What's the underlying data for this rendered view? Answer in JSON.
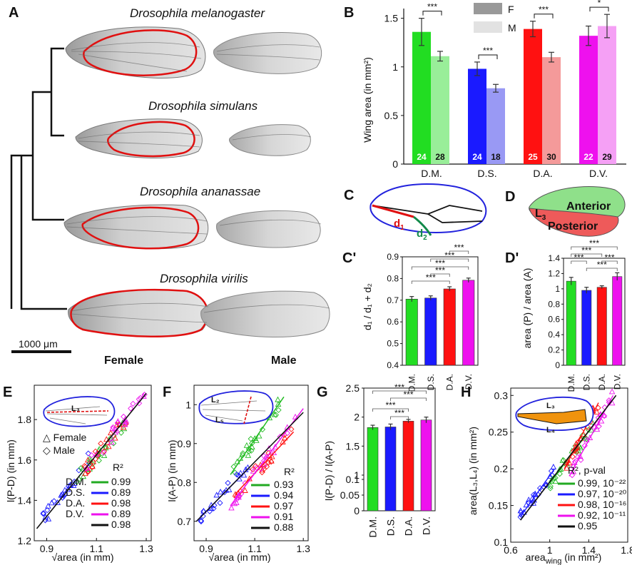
{
  "panels": {
    "A": "A",
    "B": "B",
    "C": "C",
    "Cp": "C'",
    "D": "D",
    "Dp": "D'",
    "E": "E",
    "F": "F",
    "G": "G",
    "H": "H"
  },
  "panelA": {
    "species": [
      "Drosophila melanogaster",
      "Drosophila simulans",
      "Drosophila ananassae",
      "Drosophila virilis"
    ],
    "scalebar": "1000 μm",
    "female": "Female",
    "male": "Male"
  },
  "panelB": {
    "ylabel": "Wing area (in mm²)",
    "legend_f": "F",
    "legend_m": "M",
    "yticks": [
      "0",
      "0.5",
      "1",
      "1.5"
    ],
    "categories": [
      "D.M.",
      "D.S.",
      "D.A.",
      "D.V."
    ],
    "sig": [
      "***",
      "***",
      "***",
      "*"
    ],
    "chart_data": {
      "type": "bar",
      "title": "",
      "xlabel": "",
      "ylabel": "Wing area (in mm²)",
      "ylim": [
        0,
        1.6
      ],
      "categories": [
        "D.M.",
        "D.S.",
        "D.A.",
        "D.V."
      ],
      "series": [
        {
          "name": "F",
          "values": [
            1.36,
            0.98,
            1.39,
            1.32
          ],
          "err": [
            0.14,
            0.07,
            0.08,
            0.1
          ],
          "n": [
            "24",
            "24",
            "25",
            "22"
          ]
        },
        {
          "name": "M",
          "values": [
            1.11,
            0.78,
            1.1,
            1.42
          ],
          "err": [
            0.05,
            0.04,
            0.05,
            0.12
          ],
          "n": [
            "28",
            "18",
            "30",
            "29"
          ]
        }
      ],
      "colors": [
        "#22dd22",
        "#1a1aff",
        "#ff1111",
        "#ee11ee"
      ],
      "colors_light": [
        "#99ee99",
        "#9999f4",
        "#f49a9a",
        "#f5a0f5"
      ]
    }
  },
  "panelC": {
    "d1": "d",
    "d1sub": "1",
    "d2": "d",
    "d2sub": "2",
    "ylabel": "d₁ / d₁ + d₂",
    "yticks": [
      "0.4",
      "0.5",
      "0.6",
      "0.7",
      "0.8",
      "0.9"
    ],
    "sig": "***",
    "chart_data": {
      "type": "bar",
      "ylabel": "d1 / d1 + d2",
      "ylim": [
        0.4,
        0.9
      ],
      "categories": [
        "D.M.",
        "D.S.",
        "D.A.",
        "D.V."
      ],
      "values": [
        0.705,
        0.71,
        0.752,
        0.792
      ],
      "err": [
        0.012,
        0.01,
        0.01,
        0.01
      ]
    }
  },
  "panelD": {
    "anterior": "Anterior",
    "posterior": "Posterior",
    "l3": "L",
    "l3sub": "3",
    "ylabel": "area (P) / area (A)",
    "yticks": [
      "0",
      "0.2",
      "0.4",
      "0.6",
      "0.8",
      "1",
      "1.2",
      "1.4"
    ],
    "sig": "***",
    "chart_data": {
      "type": "bar",
      "ylabel": "area (P) / area (A)",
      "ylim": [
        0,
        1.4
      ],
      "categories": [
        "D.M.",
        "D.S.",
        "D.A.",
        "D.V."
      ],
      "values": [
        1.1,
        0.98,
        1.02,
        1.16
      ],
      "err": [
        0.05,
        0.04,
        0.02,
        0.05
      ]
    }
  },
  "panelE": {
    "ylabel": "l(P-D) (in mm)",
    "xlabel": "√area (in mm)",
    "yticks": [
      "1.2",
      "1.4",
      "1.6",
      "1.8"
    ],
    "xticks": [
      "0.9",
      "1.1",
      "1.3"
    ],
    "legend_female": "△ Female",
    "legend_male": "◇ Male",
    "r2": "R²",
    "inset_l3": "L₃",
    "rows": [
      {
        "name": "D.M.",
        "val": "0.99",
        "color": "#22aa22"
      },
      {
        "name": "D.S.",
        "val": "0.89",
        "color": "#1a1aff"
      },
      {
        "name": "D.A.",
        "val": "0.98",
        "color": "#ff1111"
      },
      {
        "name": "D.V.",
        "val": "0.89",
        "color": "#ee11ee"
      },
      {
        "name": "",
        "val": "0.98",
        "color": "#111111"
      }
    ],
    "chart_data": {
      "type": "scatter",
      "xlabel": "√area (in mm)",
      "ylabel": "l(P-D) (in mm)",
      "xlim": [
        0.85,
        1.32
      ],
      "ylim": [
        1.2,
        1.97
      ],
      "fit": {
        "x": [
          0.86,
          1.3
        ],
        "y": [
          1.26,
          1.93
        ]
      },
      "clusters": [
        {
          "name": "D.S.",
          "x_range": [
            0.87,
            1.08
          ],
          "y_range": [
            1.28,
            1.62
          ]
        },
        {
          "name": "D.M.",
          "x_range": [
            1.02,
            1.22
          ],
          "y_range": [
            1.5,
            1.78
          ]
        },
        {
          "name": "D.A.",
          "x_range": [
            1.05,
            1.25
          ],
          "y_range": [
            1.55,
            1.85
          ]
        },
        {
          "name": "D.V.",
          "x_range": [
            1.05,
            1.3
          ],
          "y_range": [
            1.55,
            1.93
          ]
        }
      ]
    }
  },
  "panelF": {
    "ylabel": "l(A-P) (in mm)",
    "xlabel": "√area (in mm)",
    "yticks": [
      "0.7",
      "0.8",
      "0.9",
      "1"
    ],
    "xticks": [
      "0.9",
      "1.1",
      "1.3"
    ],
    "r2": "R²",
    "inset_l2": "L₂",
    "inset_l5": "L₅",
    "rows": [
      {
        "val": "0.93",
        "color": "#22aa22"
      },
      {
        "val": "0.94",
        "color": "#1a1aff"
      },
      {
        "val": "0.97",
        "color": "#ff1111"
      },
      {
        "val": "0.91",
        "color": "#ee11ee"
      },
      {
        "val": "0.88",
        "color": "#111111"
      }
    ],
    "chart_data": {
      "type": "scatter",
      "xlabel": "√area (in mm)",
      "ylabel": "l(A-P) (in mm)",
      "xlim": [
        0.85,
        1.32
      ],
      "ylim": [
        0.65,
        1.05
      ],
      "fits": [
        {
          "name": "D.M.",
          "x": [
            1.0,
            1.22
          ],
          "y": [
            0.82,
            1.02
          ]
        },
        {
          "name": "D.S.",
          "x": [
            0.86,
            1.08
          ],
          "y": [
            0.7,
            0.84
          ]
        },
        {
          "name": "D.A.",
          "x": [
            1.02,
            1.26
          ],
          "y": [
            0.77,
            0.93
          ]
        },
        {
          "name": "D.V.",
          "x": [
            1.0,
            1.3
          ],
          "y": [
            0.74,
            0.99
          ]
        },
        {
          "name": "all",
          "x": [
            0.86,
            1.3
          ],
          "y": [
            0.7,
            0.98
          ]
        }
      ]
    }
  },
  "panelG": {
    "ylabel": "l(P-D) / l(A-P)",
    "yticks": [
      "0",
      "0.05",
      "0.1",
      "1",
      "1.5",
      "2",
      "2.5"
    ],
    "sig": "***",
    "chart_data": {
      "type": "bar",
      "ylabel": "l(P-D) / l(A-P)",
      "broken_axis": true,
      "categories": [
        "D.M.",
        "D.S.",
        "D.A.",
        "D.V."
      ],
      "values": [
        1.82,
        1.83,
        1.93,
        1.95
      ],
      "err": [
        0.04,
        0.05,
        0.03,
        0.05
      ]
    }
  },
  "panelH": {
    "ylabel": "area(L₃,L₄) (in mm²)",
    "xlabel_main": "area",
    "xlabel_sub": "wing",
    "xlabel_unit": " (in mm²)",
    "yticks": [
      "0.1",
      "0.15",
      "0.2",
      "0.25",
      "0.3"
    ],
    "xticks": [
      "0.6",
      "1",
      "1.4",
      "1.8"
    ],
    "legend_title": "R², p-val",
    "inset_l3": "L₃",
    "inset_l4": "L₄",
    "rows": [
      {
        "val": "0.99, 10⁻²²",
        "color": "#22aa22"
      },
      {
        "val": "0.97, 10⁻²⁰",
        "color": "#1a1aff"
      },
      {
        "val": "0.98, 10⁻¹⁶",
        "color": "#ff1111"
      },
      {
        "val": "0.92, 10⁻¹¹",
        "color": "#ee11ee"
      },
      {
        "val": "0.95",
        "color": "#111111"
      }
    ],
    "chart_data": {
      "type": "scatter",
      "xlabel": "area_wing (in mm²)",
      "ylabel": "area(L3,L4) (in mm²)",
      "xlim": [
        0.6,
        1.8
      ],
      "ylim": [
        0.1,
        0.31
      ],
      "fit": {
        "x": [
          0.7,
          1.68
        ],
        "y": [
          0.13,
          0.3
        ]
      }
    }
  },
  "colors": {
    "green": "#22dd22",
    "blue": "#1a1aff",
    "red": "#ff1111",
    "magenta": "#ee11ee"
  }
}
